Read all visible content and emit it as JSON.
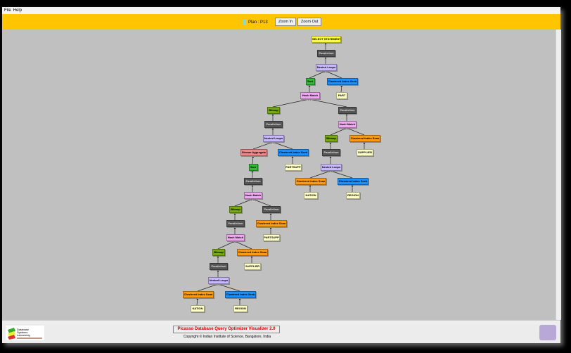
{
  "menu": [
    "File",
    "Help"
  ],
  "toolbar": {
    "plan_label": "Plan : P13",
    "zoom_in": "Zoom In",
    "zoom_out": "Zoom Out",
    "plan_color": "#7fe0d0"
  },
  "footer": {
    "title": "Picasso Database Query Optimizer Visualizer 2.0",
    "copyright": "Copyright © Indian Institute of Science, Bangalore, India",
    "logo_text": "Database Systems Laboratory"
  },
  "colors": {
    "select": "#ffff33",
    "parallelism": "#555555",
    "nested": "#c8b8ff",
    "sort": "#33bb33",
    "seek": "#1a8fff",
    "table": "#ffffc8",
    "hash": "#f0a8f0",
    "bitmap": "#77aa11",
    "scan": "#ff9a10",
    "stream": "#f08888"
  },
  "plan_tree": [
    {
      "label": "SELECT STATEMENT",
      "type": "select",
      "parent": -1
    },
    {
      "label": "Parallelism",
      "type": "parallelism",
      "parent": 0
    },
    {
      "label": "Nested Loops",
      "type": "nested",
      "parent": 1
    },
    {
      "label": "Sort",
      "type": "sort",
      "parent": 2
    },
    {
      "label": "Clustered Index Seek",
      "type": "seek",
      "parent": 2
    },
    {
      "label": "PART",
      "type": "table",
      "parent": 4
    },
    {
      "label": "Hash Match",
      "type": "hash",
      "parent": 3
    },
    {
      "label": "Bitmap",
      "type": "bitmap",
      "parent": 6
    },
    {
      "label": "Parallelism",
      "type": "parallelism",
      "parent": 6
    },
    {
      "label": "Parallelism",
      "type": "parallelism",
      "parent": 7
    },
    {
      "label": "Hash Match",
      "type": "hash",
      "parent": 8
    },
    {
      "label": "Nested Loops",
      "type": "nested",
      "parent": 9
    },
    {
      "label": "Bitmap",
      "type": "bitmap",
      "parent": 10
    },
    {
      "label": "Clustered Index Scan",
      "type": "scan",
      "parent": 10
    },
    {
      "label": "Stream Aggregate",
      "type": "stream",
      "parent": 11
    },
    {
      "label": "Clustered Index Seek",
      "type": "seek",
      "parent": 11
    },
    {
      "label": "Parallelism",
      "type": "parallelism",
      "parent": 12
    },
    {
      "label": "SUPPLIER",
      "type": "table",
      "parent": 13
    },
    {
      "label": "Sort",
      "type": "sort",
      "parent": 14
    },
    {
      "label": "PARTSUPP",
      "type": "table",
      "parent": 15
    },
    {
      "label": "Nested Loops",
      "type": "nested",
      "parent": 16
    },
    {
      "label": "Parallelism",
      "type": "parallelism",
      "parent": 18
    },
    {
      "label": "Clustered Index Scan",
      "type": "scan",
      "parent": 20
    },
    {
      "label": "Clustered Index Seek",
      "type": "seek",
      "parent": 20
    },
    {
      "label": "Hash Match",
      "type": "hash",
      "parent": 21
    },
    {
      "label": "NATION",
      "type": "table",
      "parent": 22
    },
    {
      "label": "REGION",
      "type": "table",
      "parent": 23
    },
    {
      "label": "Bitmap",
      "type": "bitmap",
      "parent": 24
    },
    {
      "label": "Parallelism",
      "type": "parallelism",
      "parent": 24
    },
    {
      "label": "Parallelism",
      "type": "parallelism",
      "parent": 27
    },
    {
      "label": "Clustered Index Scan",
      "type": "scan",
      "parent": 28
    },
    {
      "label": "Hash Match",
      "type": "hash",
      "parent": 29
    },
    {
      "label": "PARTSUPP",
      "type": "table",
      "parent": 30
    },
    {
      "label": "Bitmap",
      "type": "bitmap",
      "parent": 31
    },
    {
      "label": "Clustered Index Scan",
      "type": "scan",
      "parent": 31
    },
    {
      "label": "Parallelism",
      "type": "parallelism",
      "parent": 33
    },
    {
      "label": "SUPPLIER",
      "type": "table",
      "parent": 34
    },
    {
      "label": "Nested Loops",
      "type": "nested",
      "parent": 35
    },
    {
      "label": "Clustered Index Scan",
      "type": "scan",
      "parent": 37
    },
    {
      "label": "Clustered Index Seek",
      "type": "seek",
      "parent": 37
    },
    {
      "label": "NATION",
      "type": "table",
      "parent": 38
    },
    {
      "label": "REGION",
      "type": "table",
      "parent": 39
    }
  ]
}
